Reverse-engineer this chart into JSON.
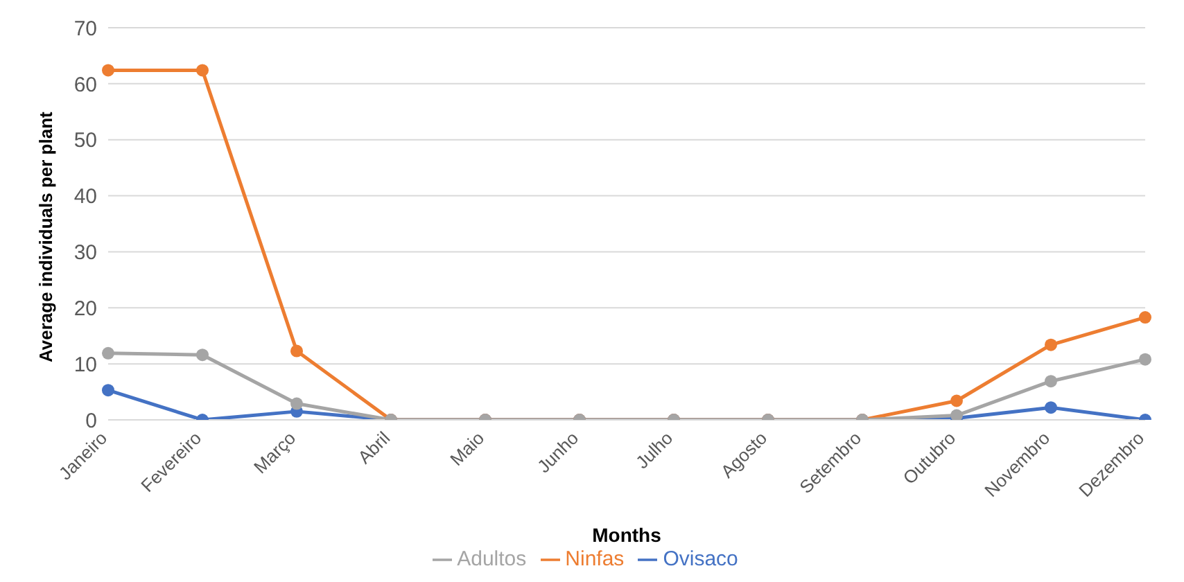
{
  "chart_data": {
    "type": "line",
    "xlabel": "Months",
    "ylabel": "Average individuals per plant",
    "categories": [
      "Janeiro",
      "Fevereiro",
      "Março",
      "Abril",
      "Maio",
      "Junho",
      "Julho",
      "Agosto",
      "Setembro",
      "Outubro",
      "Novembro",
      "Dezembro"
    ],
    "series": [
      {
        "name": "Ovisaco",
        "color": "#4472c4",
        "values": [
          5.3,
          0,
          1.5,
          0,
          0,
          0,
          0,
          0,
          0,
          0.3,
          2.2,
          0
        ]
      },
      {
        "name": "Ninfas",
        "color": "#ed7d31",
        "values": [
          62.4,
          62.4,
          12.3,
          0,
          0,
          0,
          0,
          0,
          0,
          3.4,
          13.4,
          18.3
        ]
      },
      {
        "name": "Adultos",
        "color": "#a5a5a5",
        "values": [
          11.9,
          11.6,
          2.9,
          0,
          0,
          0,
          0,
          0,
          0,
          0.8,
          6.9,
          10.8
        ]
      }
    ],
    "ylim": [
      0,
      70
    ],
    "yticks": [
      0,
      10,
      20,
      30,
      40,
      50,
      60,
      70
    ],
    "grid": "y",
    "legend": "bottom",
    "marker": "circle",
    "line_style": "solid"
  }
}
